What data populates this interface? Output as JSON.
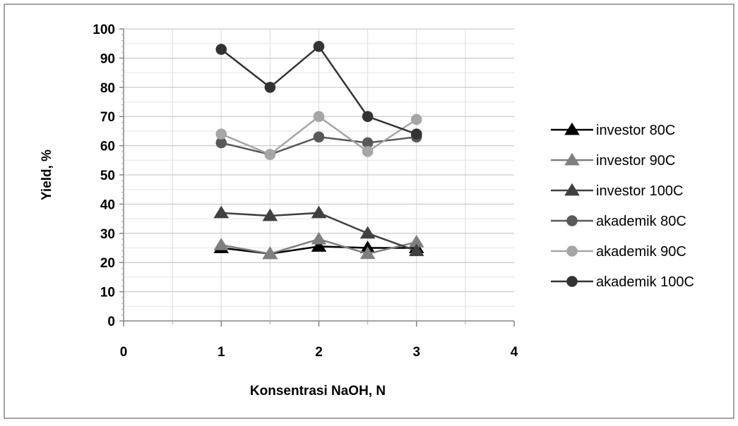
{
  "chart_data": {
    "type": "line",
    "title": "",
    "xlabel": "Konsentrasi NaOH, N",
    "ylabel": "Yield, %",
    "xlim": [
      0,
      4
    ],
    "ylim": [
      0,
      100
    ],
    "x_ticks": [
      0,
      1,
      2,
      3,
      4
    ],
    "y_ticks": [
      0,
      10,
      20,
      30,
      40,
      50,
      60,
      70,
      80,
      90,
      100
    ],
    "grid": true,
    "legend_position": "right",
    "x": [
      1,
      1.5,
      2,
      2.5,
      3
    ],
    "series": [
      {
        "name": "investor 80C",
        "marker": "triangle",
        "color": "#000000",
        "values": [
          25,
          23,
          25.5,
          25,
          25
        ]
      },
      {
        "name": "investor 90C",
        "marker": "triangle",
        "color": "#7f7f7f",
        "values": [
          26,
          23,
          28,
          23,
          27
        ]
      },
      {
        "name": "investor 100C",
        "marker": "triangle",
        "color": "#404040",
        "values": [
          37,
          36,
          37,
          30,
          24
        ]
      },
      {
        "name": "akademik 80C",
        "marker": "circle",
        "color": "#595959",
        "values": [
          61,
          57,
          63,
          61,
          63
        ]
      },
      {
        "name": "akademik 90C",
        "marker": "circle",
        "color": "#a6a6a6",
        "values": [
          64,
          57,
          70,
          58,
          69
        ]
      },
      {
        "name": "akademik 100C",
        "marker": "circle",
        "color": "#333333",
        "values": [
          93,
          80,
          94,
          70,
          64
        ]
      }
    ]
  }
}
